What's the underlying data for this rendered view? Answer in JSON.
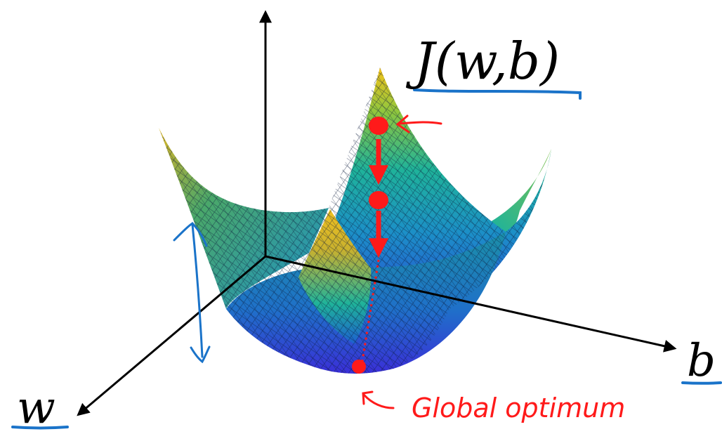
{
  "labels": {
    "cost": "J(w,b)",
    "b_axis": "b",
    "w_axis": "w",
    "optimum": "Global optimum"
  },
  "colors": {
    "axis": "#000000",
    "annotation_red": "#ff1a1a",
    "annotation_blue": "#1a73c9",
    "surface_low": "#2a3fd6",
    "surface_mid": "#1fb39a",
    "surface_high": "#f5c31a"
  },
  "icons": {
    "arrow": "arrow-icon",
    "point": "descent-step-point"
  }
}
